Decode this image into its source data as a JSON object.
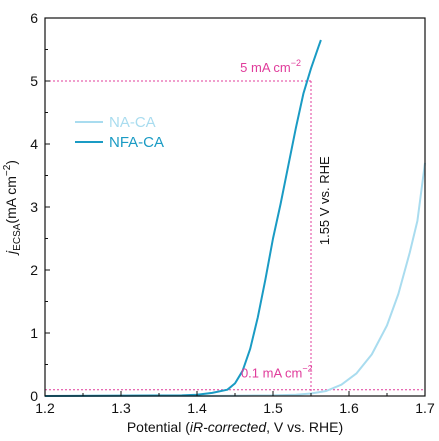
{
  "chart_data": {
    "type": "line",
    "xlabel": {
      "prefix": "Potential (",
      "italic": "iR-corrected",
      "suffix": ", V vs. RHE)"
    },
    "ylabel": {
      "j": "j",
      "sub": "ECSA",
      "unit": "(mA cm",
      "sup": "−2",
      "close": ")"
    },
    "xlim": [
      1.2,
      1.7
    ],
    "ylim": [
      0,
      6
    ],
    "x_ticks": [
      "1.2",
      "1.3",
      "1.4",
      "1.5",
      "1.6",
      "1.7"
    ],
    "y_ticks": [
      "0",
      "1",
      "2",
      "3",
      "4",
      "5",
      "6"
    ],
    "legend_position": "upper-left",
    "series": [
      {
        "name": "NA-CA",
        "color": "#a9dcef",
        "points": [
          [
            1.2,
            0.0
          ],
          [
            1.4,
            0.0
          ],
          [
            1.45,
            0.005
          ],
          [
            1.5,
            0.01
          ],
          [
            1.53,
            0.02
          ],
          [
            1.55,
            0.04
          ],
          [
            1.57,
            0.08
          ],
          [
            1.59,
            0.18
          ],
          [
            1.61,
            0.36
          ],
          [
            1.63,
            0.66
          ],
          [
            1.65,
            1.12
          ],
          [
            1.665,
            1.62
          ],
          [
            1.68,
            2.28
          ],
          [
            1.69,
            2.78
          ],
          [
            1.7,
            3.7
          ]
        ]
      },
      {
        "name": "NFA-CA",
        "color": "#1a9bc4",
        "points": [
          [
            1.2,
            0.0
          ],
          [
            1.38,
            0.01
          ],
          [
            1.4,
            0.02
          ],
          [
            1.42,
            0.05
          ],
          [
            1.44,
            0.1
          ],
          [
            1.45,
            0.2
          ],
          [
            1.46,
            0.4
          ],
          [
            1.47,
            0.75
          ],
          [
            1.48,
            1.25
          ],
          [
            1.49,
            1.85
          ],
          [
            1.5,
            2.5
          ],
          [
            1.51,
            3.05
          ],
          [
            1.52,
            3.65
          ],
          [
            1.53,
            4.25
          ],
          [
            1.54,
            4.8
          ],
          [
            1.55,
            5.2
          ],
          [
            1.56,
            5.55
          ],
          [
            1.563,
            5.65
          ]
        ]
      }
    ],
    "reference_lines": {
      "color": "#e03c9b",
      "high_current": 5.0,
      "low_current": 0.1,
      "potential": 1.55
    },
    "annotations": {
      "high_current_label": "5 mA cm",
      "high_current_sup": "−2",
      "low_current_label": "0.1 mA cm",
      "low_current_sup": "−2",
      "potential_label": "1.55 V vs. RHE"
    },
    "grid": false
  }
}
